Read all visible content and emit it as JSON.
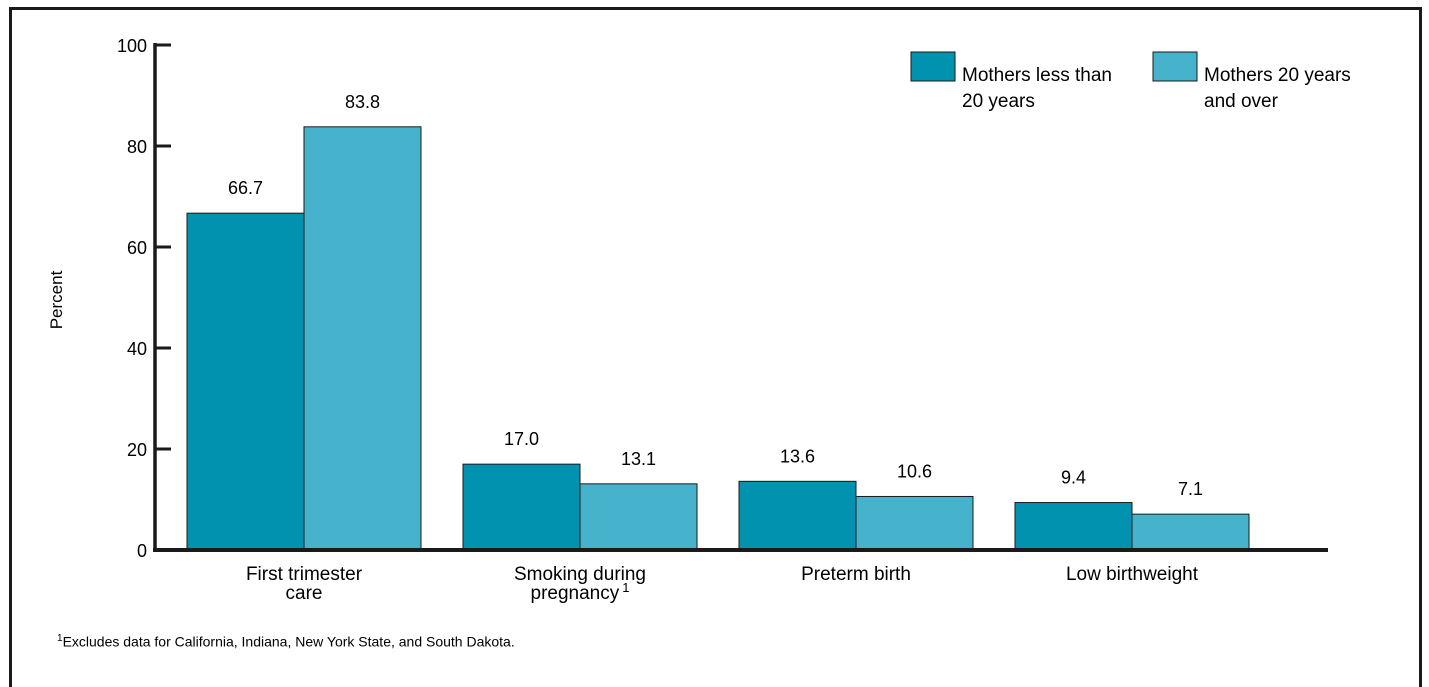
{
  "chart_data": {
    "type": "bar",
    "ylabel": "Percent",
    "ylim": [
      0,
      100
    ],
    "yticks": [
      "0",
      "20",
      "40",
      "60",
      "80",
      "100"
    ],
    "categories": [
      [
        "First trimester",
        "care"
      ],
      [
        "Smoking during",
        "pregnancy"
      ],
      [
        "Preterm birth"
      ],
      [
        "Low birthweight"
      ]
    ],
    "category_superscripts": [
      "",
      "1",
      "",
      ""
    ],
    "series": [
      {
        "name": "Mothers less than 20 years",
        "legend_lines": [
          "Mothers less than",
          "20 years"
        ],
        "color": "#0192af",
        "values": [
          66.7,
          17.0,
          13.6,
          9.4
        ],
        "labels": [
          "66.7",
          "17.0",
          "13.6",
          "9.4"
        ]
      },
      {
        "name": "Mothers 20 years and over",
        "legend_lines": [
          "Mothers 20 years",
          "and over"
        ],
        "color": "#47b2cb",
        "values": [
          83.8,
          13.1,
          10.6,
          7.1
        ],
        "labels": [
          "83.8",
          "13.1",
          "10.6",
          "7.1"
        ]
      }
    ],
    "legend_position": "top-right",
    "grid": false
  },
  "footnote": {
    "marker": "1",
    "text": "Excludes data for California, Indiana, New York State, and South Dakota."
  }
}
